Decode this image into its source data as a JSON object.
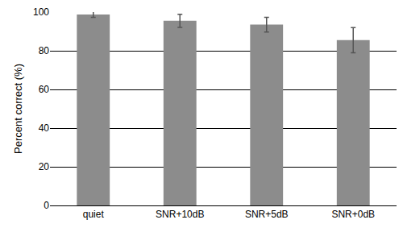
{
  "chart_data": {
    "type": "bar",
    "y_label": "Percent correct (%)",
    "categories": [
      "quiet",
      "SNR+10dB",
      "SNR+5dB",
      "SNR+0dB"
    ],
    "values": [
      98.8,
      95.5,
      93.5,
      85.5
    ],
    "errors": [
      1.5,
      3.4,
      3.8,
      6.5
    ],
    "color": "#8c8c8c",
    "ylim": [
      0,
      100
    ],
    "yticks": [
      0,
      20,
      40,
      60,
      80,
      100
    ],
    "grid": true
  }
}
